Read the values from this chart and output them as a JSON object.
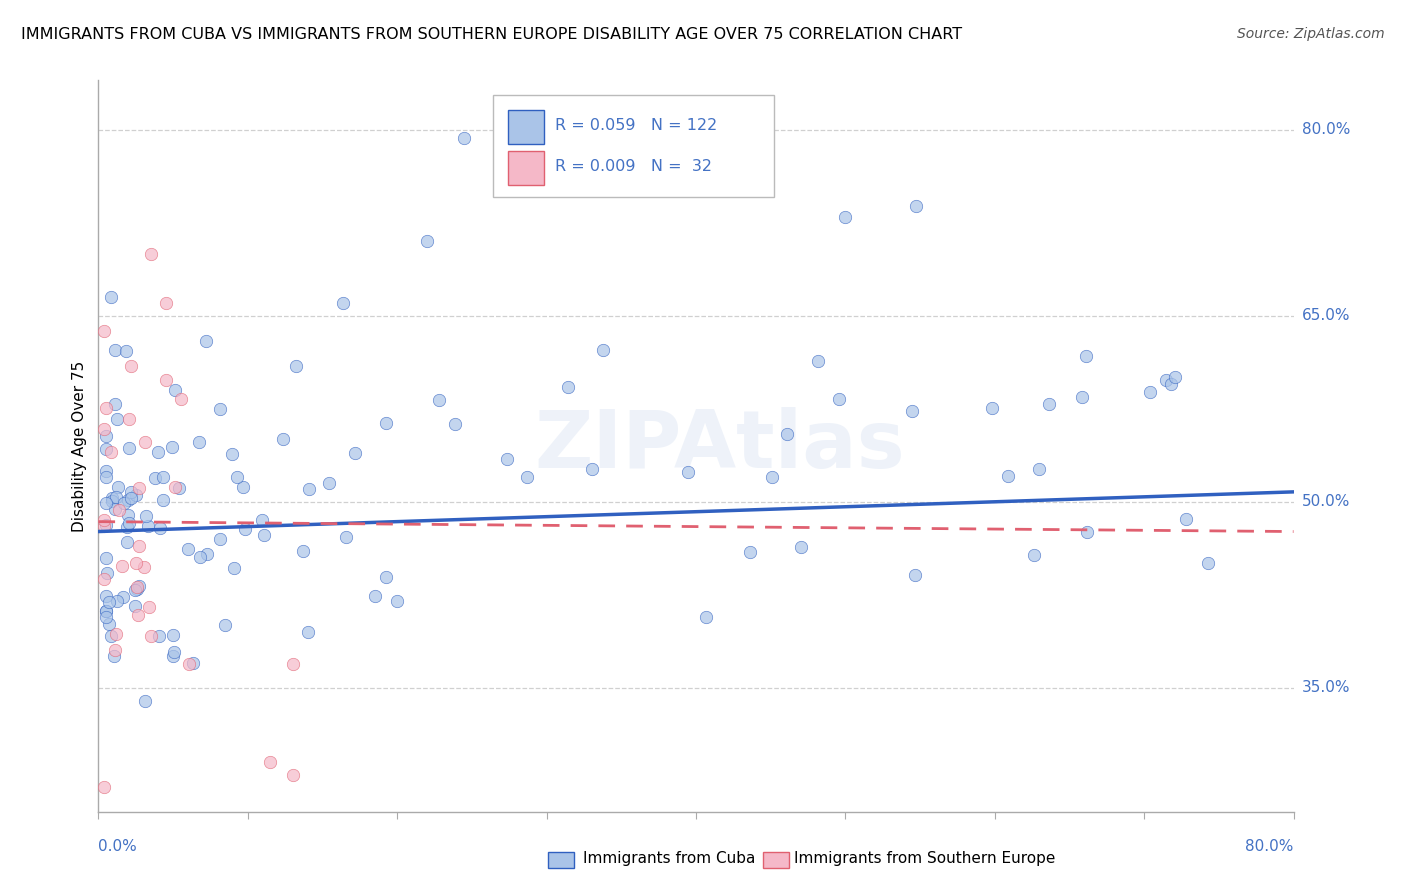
{
  "title": "IMMIGRANTS FROM CUBA VS IMMIGRANTS FROM SOUTHERN EUROPE DISABILITY AGE OVER 75 CORRELATION CHART",
  "source": "Source: ZipAtlas.com",
  "ylabel": "Disability Age Over 75",
  "watermark": "ZIPAtlas",
  "right_yticks": [
    35.0,
    50.0,
    65.0,
    80.0
  ],
  "xlim": [
    0.0,
    0.8
  ],
  "ylim": [
    0.25,
    0.84
  ],
  "legend1_R": "0.059",
  "legend1_N": "122",
  "legend2_R": "0.009",
  "legend2_N": "32",
  "color_cuba": "#aac4e8",
  "color_se": "#f5b8c8",
  "trendline_cuba_color": "#3060c0",
  "trendline_se_color": "#e06070",
  "cuba_trend_x0": 0.0,
  "cuba_trend_x1": 0.8,
  "cuba_trend_y0": 0.476,
  "cuba_trend_y1": 0.508,
  "se_trend_x0": 0.0,
  "se_trend_x1": 0.8,
  "se_trend_y0": 0.484,
  "se_trend_y1": 0.476,
  "gridline_color": "#d0d0d0",
  "left_spine_color": "#aaaaaa",
  "bottom_spine_color": "#aaaaaa",
  "marker_size": 80,
  "marker_alpha": 0.7,
  "n_xticks": 9
}
